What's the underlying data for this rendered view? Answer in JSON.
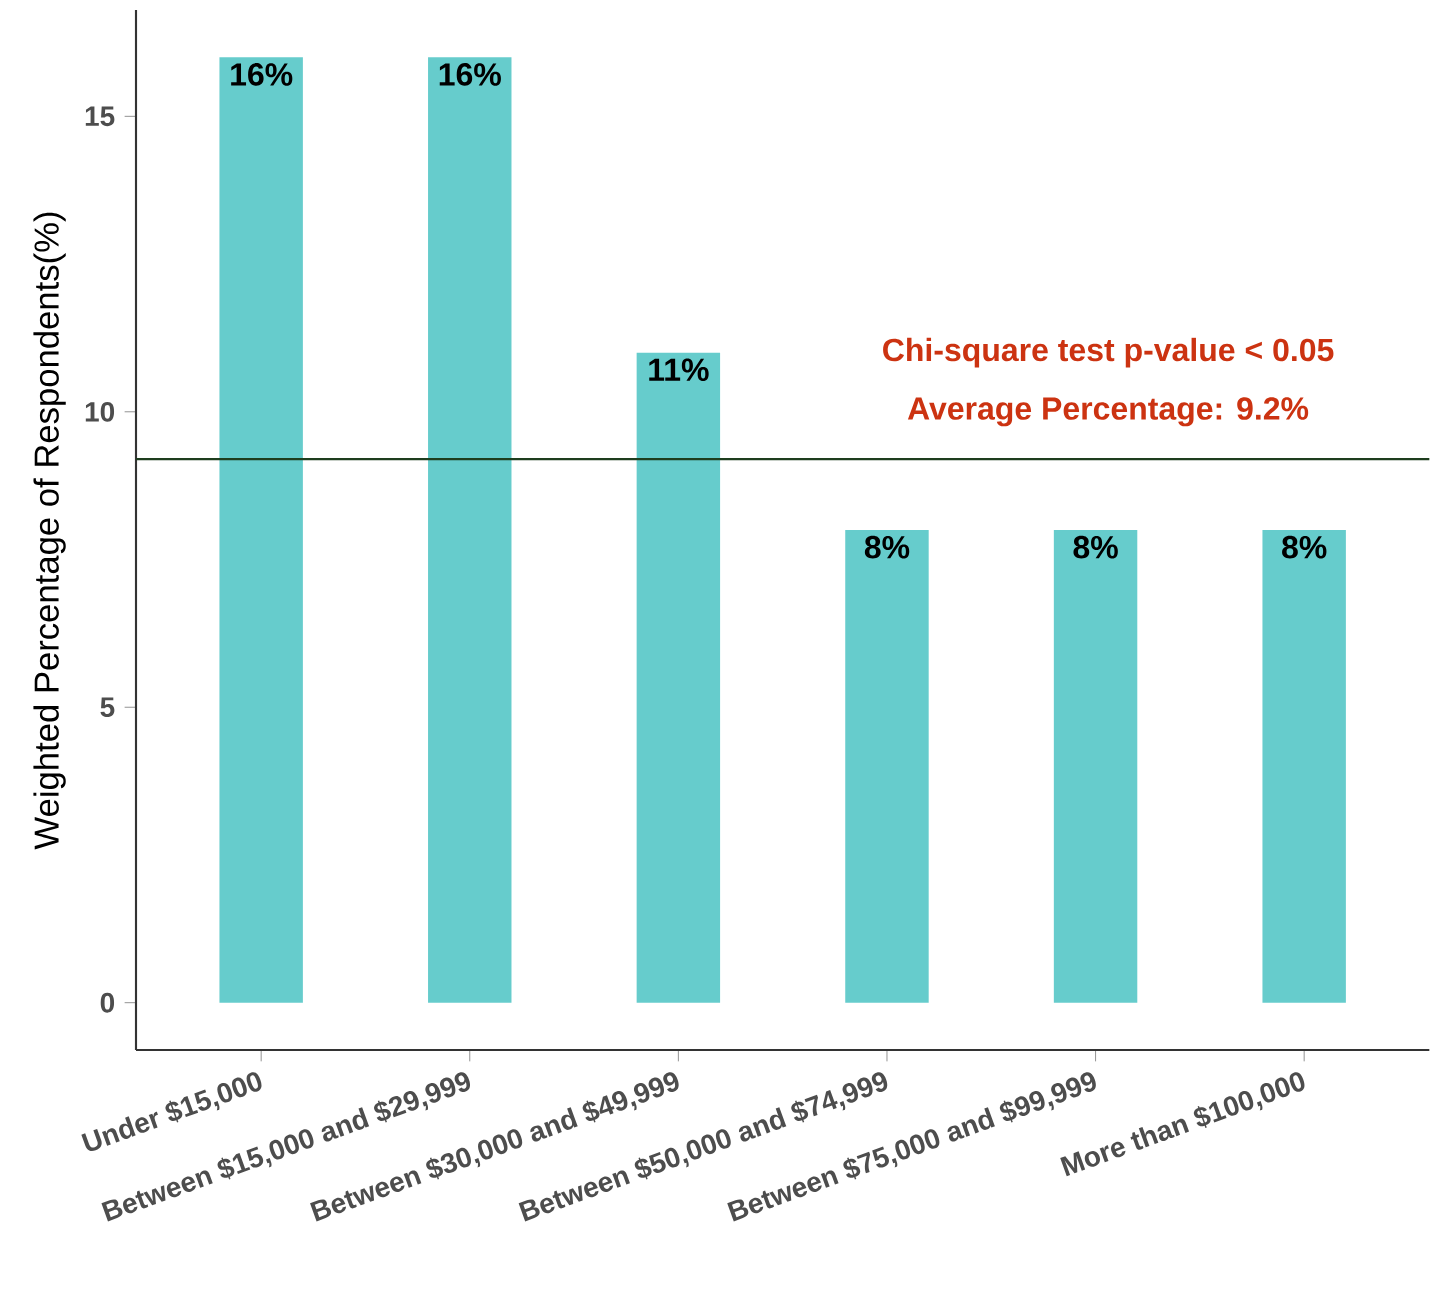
{
  "chart_data": {
    "type": "bar",
    "ylabel": "Weighted Percentage of Respondents(%)",
    "categories": [
      "Under $15,000",
      "Between $15,000 and $29,999",
      "Between $30,000 and $49,999",
      "Between $50,000 and $74,999",
      "Between $75,000 and $99,999",
      "More than $100,000"
    ],
    "values": [
      16,
      16,
      11,
      8,
      8,
      8
    ],
    "value_labels": [
      "16%",
      "16%",
      "11%",
      "8%",
      "8%",
      "8%"
    ],
    "color": "#66cccc",
    "ylim": [
      -0.8,
      16.8
    ],
    "yticks": [
      0,
      5,
      10,
      15
    ],
    "ref_lines": [
      {
        "axis": "y",
        "value": 9.2,
        "label": "Average Percentage: 9.2%",
        "color": "#1e3d1e"
      }
    ],
    "annotations": [
      "Chi-square test p-value < 0.05"
    ],
    "grid": false
  }
}
